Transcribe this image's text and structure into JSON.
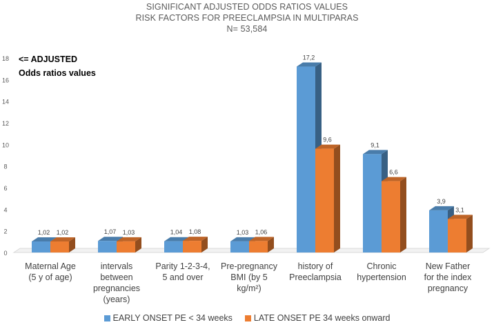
{
  "chart_data": {
    "type": "bar",
    "title_lines": [
      "SIGNIFICANT ADJUSTED ODDS RATIOS VALUES",
      "RISK FACTORS FOR PREECLAMPSIA IN MULTIPARAS",
      "N= 53,584"
    ],
    "annotation_lines": [
      "<= ADJUSTED",
      "Odds ratios values"
    ],
    "categories": [
      "Maternal Age\n(5 y of age)",
      "intervals\nbetween\npregnancies\n(years)",
      "Parity 1-2-3-4,\n5 and over",
      "Pre-pregnancy\nBMI (by 5\nkg/m²)",
      "history of\nPreeclampsia",
      "Chronic\nhypertension",
      "New Father\nfor the index\npregnancy"
    ],
    "series": [
      {
        "name": "EARLY ONSET PE < 34 weeks",
        "color": "#5B9BD5",
        "values": [
          1.02,
          1.07,
          1.04,
          1.03,
          17.2,
          9.1,
          3.9
        ],
        "labels": [
          "1,02",
          "1,07",
          "1,04",
          "1,03",
          "17,2",
          "9,1",
          "3,9"
        ]
      },
      {
        "name": "LATE ONSET PE 34 weeks onward",
        "color": "#ED7D31",
        "values": [
          1.02,
          1.03,
          1.08,
          1.06,
          9.6,
          6.6,
          3.1
        ],
        "labels": [
          "1,02",
          "1,03",
          "1,08",
          "1,06",
          "9,6",
          "6,6",
          "3,1"
        ]
      }
    ],
    "ylim": [
      0,
      18
    ],
    "yticks": [
      0,
      2,
      4,
      6,
      8,
      10,
      12,
      14,
      16,
      18
    ],
    "grid": false,
    "legend_position": "bottom"
  }
}
